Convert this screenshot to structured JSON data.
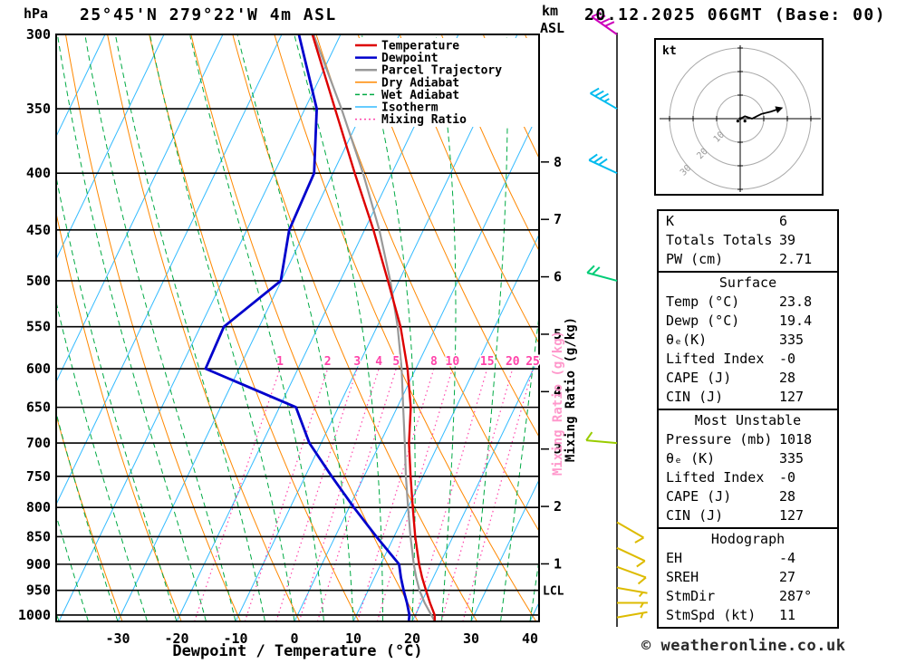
{
  "header": {
    "station_title": "25°45'N 279°22'W 4m ASL",
    "datetime_title": "20.12.2025 06GMT (Base: 00)",
    "pressure_unit": "hPa",
    "altitude_unit_line1": "km",
    "altitude_unit_line2": "ASL"
  },
  "axes": {
    "x_label": "Dewpoint / Temperature (°C)",
    "mixing_ratio_label": "Mixing Ratio (g/kg)",
    "lcl_label": "LCL"
  },
  "legend": [
    {
      "label": "Temperature",
      "color": "#dd0000",
      "width": 2.5,
      "dash": ""
    },
    {
      "label": "Dewpoint",
      "color": "#0000cc",
      "width": 2.5,
      "dash": ""
    },
    {
      "label": "Parcel Trajectory",
      "color": "#999999",
      "width": 2.5,
      "dash": ""
    },
    {
      "label": "Dry Adiabat",
      "color": "#ff8800",
      "width": 1.5,
      "dash": ""
    },
    {
      "label": "Wet Adiabat",
      "color": "#00aa44",
      "width": 1.5,
      "dash": "5 3"
    },
    {
      "label": "Isotherm",
      "color": "#33bbff",
      "width": 1.5,
      "dash": ""
    },
    {
      "label": "Mixing Ratio",
      "color": "#ff44aa",
      "width": 1.5,
      "dash": "2 3"
    }
  ],
  "chart_data": {
    "type": "line",
    "title": "Skew-T log-P sounding",
    "pressure_ticks": [
      300,
      350,
      400,
      450,
      500,
      550,
      600,
      650,
      700,
      750,
      800,
      850,
      900,
      950,
      1000
    ],
    "temp_ticks": [
      -30,
      -20,
      -10,
      0,
      10,
      20,
      30,
      40
    ],
    "altitude_ticks_km": [
      1,
      2,
      3,
      4,
      5,
      6,
      7,
      8
    ],
    "mixing_ratio_lines_gkg": [
      1,
      2,
      3,
      4,
      5,
      8,
      10,
      15,
      20,
      25
    ],
    "isotherm_step_c": 10,
    "dry_adiabat_step_k": 10,
    "wet_adiabat_step_c": 5,
    "lcl_pressure_hpa": 950,
    "series": [
      {
        "name": "Parcel Trajectory",
        "color": "#999999",
        "width": 2.2,
        "points": [
          [
            1013,
            23.8
          ],
          [
            975,
            20.6
          ],
          [
            950,
            18.7
          ],
          [
            925,
            17.1
          ],
          [
            900,
            15.6
          ],
          [
            850,
            12.8
          ],
          [
            800,
            10.0
          ],
          [
            750,
            7.1
          ],
          [
            700,
            4.2
          ],
          [
            650,
            1.0
          ],
          [
            600,
            -2.4
          ],
          [
            550,
            -6.5
          ],
          [
            500,
            -11.5
          ],
          [
            450,
            -17.5
          ],
          [
            400,
            -24.9
          ],
          [
            350,
            -33.8
          ],
          [
            300,
            -44.6
          ]
        ]
      },
      {
        "name": "Dewpoint",
        "color": "#0000cc",
        "width": 2.8,
        "points": [
          [
            1013,
            19.4
          ],
          [
            1000,
            19.0
          ],
          [
            975,
            17.6
          ],
          [
            950,
            16.0
          ],
          [
            925,
            14.5
          ],
          [
            900,
            13.1
          ],
          [
            850,
            7.0
          ],
          [
            800,
            0.8
          ],
          [
            750,
            -5.5
          ],
          [
            700,
            -12.0
          ],
          [
            650,
            -17.2
          ],
          [
            600,
            -35.7
          ],
          [
            550,
            -36.0
          ],
          [
            500,
            -30.1
          ],
          [
            450,
            -32.8
          ],
          [
            400,
            -33.2
          ],
          [
            350,
            -38.0
          ],
          [
            300,
            -47.1
          ]
        ]
      },
      {
        "name": "Temperature",
        "color": "#dd0000",
        "width": 2.4,
        "points": [
          [
            1013,
            23.8
          ],
          [
            1000,
            23.3
          ],
          [
            975,
            21.5
          ],
          [
            950,
            19.8
          ],
          [
            925,
            18.1
          ],
          [
            900,
            16.5
          ],
          [
            850,
            13.6
          ],
          [
            800,
            10.8
          ],
          [
            750,
            7.9
          ],
          [
            700,
            4.9
          ],
          [
            650,
            2.3
          ],
          [
            600,
            -1.4
          ],
          [
            550,
            -6.0
          ],
          [
            500,
            -11.9
          ],
          [
            450,
            -18.5
          ],
          [
            400,
            -26.3
          ],
          [
            350,
            -34.9
          ],
          [
            300,
            -44.8
          ]
        ]
      }
    ],
    "wind_barbs": [
      {
        "pressure": 300,
        "speed_kt": 40,
        "dir_deg": 305,
        "color": "#cc00bb"
      },
      {
        "pressure": 350,
        "speed_kt": 35,
        "dir_deg": 300,
        "color": "#00bbee"
      },
      {
        "pressure": 400,
        "speed_kt": 30,
        "dir_deg": 295,
        "color": "#00bbee"
      },
      {
        "pressure": 500,
        "speed_kt": 20,
        "dir_deg": 285,
        "color": "#00cc77"
      },
      {
        "pressure": 700,
        "speed_kt": 10,
        "dir_deg": 275,
        "color": "#99cc00"
      },
      {
        "pressure": 825,
        "speed_kt": 10,
        "dir_deg": 120,
        "color": "#ddbb00"
      },
      {
        "pressure": 870,
        "speed_kt": 10,
        "dir_deg": 115,
        "color": "#ddbb00"
      },
      {
        "pressure": 905,
        "speed_kt": 8,
        "dir_deg": 110,
        "color": "#ddbb00"
      },
      {
        "pressure": 945,
        "speed_kt": 7,
        "dir_deg": 100,
        "color": "#ddbb00"
      },
      {
        "pressure": 975,
        "speed_kt": 6,
        "dir_deg": 90,
        "color": "#ddbb00"
      },
      {
        "pressure": 1005,
        "speed_kt": 5,
        "dir_deg": 80,
        "color": "#ddbb00"
      }
    ]
  },
  "hodograph": {
    "unit_label": "kt",
    "rings_kt": [
      10,
      20,
      30
    ],
    "trace_uv": [
      [
        0,
        0
      ],
      [
        2,
        1
      ],
      [
        5,
        0
      ],
      [
        9,
        2
      ],
      [
        13,
        3
      ],
      [
        16,
        4
      ]
    ],
    "dots": [
      [
        0,
        0
      ],
      [
        -1,
        -1
      ],
      [
        2,
        -1
      ]
    ]
  },
  "stats": {
    "sections": [
      {
        "title": "",
        "rows": [
          [
            "K",
            "6"
          ],
          [
            "Totals Totals",
            "39"
          ],
          [
            "PW (cm)",
            "2.71"
          ]
        ]
      },
      {
        "title": "Surface",
        "rows": [
          [
            "Temp (°C)",
            "23.8"
          ],
          [
            "Dewp (°C)",
            "19.4"
          ],
          [
            "θₑ(K)",
            "335"
          ],
          [
            "Lifted Index",
            "-0"
          ],
          [
            "CAPE (J)",
            "28"
          ],
          [
            "CIN (J)",
            "127"
          ]
        ]
      },
      {
        "title": "Most Unstable",
        "rows": [
          [
            "Pressure (mb)",
            "1018"
          ],
          [
            "θₑ (K)",
            "335"
          ],
          [
            "Lifted Index",
            "-0"
          ],
          [
            "CAPE (J)",
            "28"
          ],
          [
            "CIN (J)",
            "127"
          ]
        ]
      },
      {
        "title": "Hodograph",
        "rows": [
          [
            "EH",
            "-4"
          ],
          [
            "SREH",
            "27"
          ],
          [
            "StmDir",
            "287°"
          ],
          [
            "StmSpd (kt)",
            "11"
          ]
        ]
      }
    ]
  },
  "footer": {
    "copyright": "© weatheronline.co.uk"
  }
}
